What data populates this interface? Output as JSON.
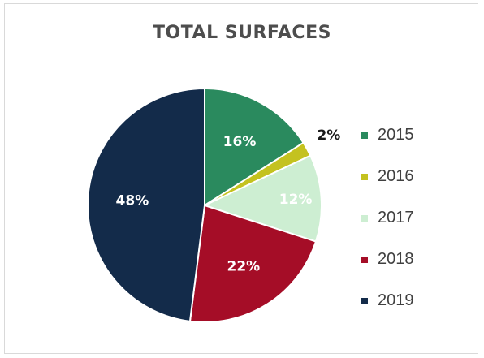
{
  "chart_data": {
    "type": "pie",
    "title": "TOTAL SURFACES",
    "slices": [
      {
        "name": "2015",
        "value": 16,
        "label": "16%",
        "color": "#2a8a5e",
        "label_color": "#ffffff"
      },
      {
        "name": "2016",
        "value": 2,
        "label": "2%",
        "color": "#c4c21f",
        "label_color": "#1a1a1a"
      },
      {
        "name": "2017",
        "value": 12,
        "label": "12%",
        "color": "#cdeed2",
        "label_color": "#ffffff"
      },
      {
        "name": "2018",
        "value": 22,
        "label": "22%",
        "color": "#a50d27",
        "label_color": "#ffffff"
      },
      {
        "name": "2019",
        "value": 48,
        "label": "48%",
        "color": "#132b4a",
        "label_color": "#ffffff"
      }
    ],
    "legend_position": "right"
  }
}
